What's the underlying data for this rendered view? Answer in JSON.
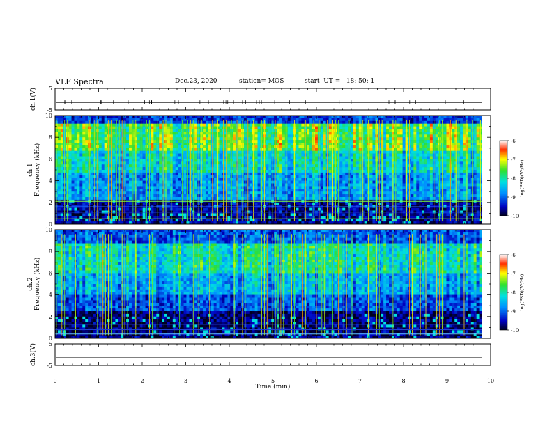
{
  "header": {
    "title": "VLF Spectra",
    "date": "Dec.23, 2020",
    "station": "station= MOS",
    "start": "start  UT =   18: 50: 1"
  },
  "chart_data": [
    {
      "type": "line",
      "panel": "ch1-waveform",
      "ylabel": "ch.1(V)",
      "ylim": [
        -5,
        5
      ],
      "yticks": [
        "5",
        "-5"
      ],
      "xlim": [
        0,
        10
      ],
      "series": [
        {
          "values": [
            -1.5
          ]
        }
      ]
    },
    {
      "type": "heatmap",
      "panel": "ch1-spectrogram",
      "ylabel": "ch.1\nFrequency (kHz)",
      "ylim": [
        0,
        10
      ],
      "yticks": [
        "0",
        "2",
        "4",
        "6",
        "8",
        "10"
      ],
      "xlim": [
        0,
        10
      ],
      "colorbar": {
        "label": "log(PSD)(V²/Hz)",
        "ticks": [
          "-6",
          "-7",
          "-8",
          "-9",
          "-10"
        ],
        "range": [
          -10,
          -6
        ]
      },
      "x_end": 9.8
    },
    {
      "type": "heatmap",
      "panel": "ch2-spectrogram",
      "ylabel": "ch.2\nFrequency (kHz)",
      "ylim": [
        0,
        10
      ],
      "yticks": [
        "0",
        "2",
        "4",
        "6",
        "8",
        "10"
      ],
      "xlim": [
        0,
        10
      ],
      "colorbar": {
        "label": "log(PSD)(V²/Hz)",
        "ticks": [
          "-6",
          "-7",
          "-8",
          "-9",
          "-10"
        ],
        "range": [
          -10,
          -6
        ]
      },
      "x_end": 9.8
    },
    {
      "type": "line",
      "panel": "ch3-waveform",
      "ylabel": "ch.3(V)",
      "ylim": [
        -5,
        5
      ],
      "yticks": [
        "5",
        "-5"
      ],
      "xlim": [
        0,
        10
      ],
      "series": [
        {
          "values": [
            -1.5
          ]
        }
      ]
    }
  ],
  "xaxis": {
    "label": "Time  (min)",
    "ticks": [
      "0",
      "1",
      "2",
      "3",
      "4",
      "5",
      "6",
      "7",
      "8",
      "9",
      "10"
    ]
  }
}
